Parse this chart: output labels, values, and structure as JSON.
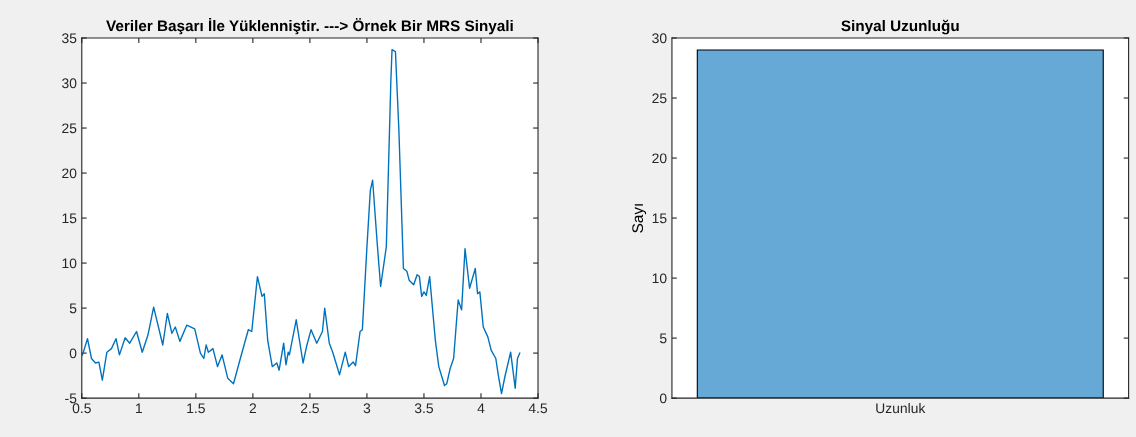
{
  "chart_data": [
    {
      "type": "line",
      "title": "Veriler Başarı İle Yüklenniştir. ---> Örnek Bir MRS Sinyali",
      "xlim": [
        0.5,
        4.5
      ],
      "xticks": [
        0.5,
        1,
        1.5,
        2,
        2.5,
        3,
        3.5,
        4,
        4.5
      ],
      "ylim": [
        -5,
        35
      ],
      "yticks": [
        -5,
        0,
        5,
        10,
        15,
        20,
        25,
        30,
        35
      ],
      "grid": false,
      "legend": false,
      "marker": "none",
      "line_style": "solid",
      "series": [
        {
          "color": "#0072bd",
          "x": [
            0.506,
            0.55,
            0.585,
            0.62,
            0.65,
            0.68,
            0.72,
            0.76,
            0.8,
            0.83,
            0.88,
            0.92,
            0.98,
            1.03,
            1.08,
            1.13,
            1.21,
            1.25,
            1.29,
            1.32,
            1.36,
            1.42,
            1.49,
            1.54,
            1.57,
            1.59,
            1.61,
            1.65,
            1.69,
            1.73,
            1.78,
            1.83,
            1.89,
            1.96,
            1.99,
            2.04,
            2.08,
            2.1,
            2.13,
            2.17,
            2.21,
            2.23,
            2.27,
            2.29,
            2.31,
            2.32,
            2.38,
            2.44,
            2.47,
            2.51,
            2.56,
            2.61,
            2.63,
            2.67,
            2.7,
            2.76,
            2.81,
            2.84,
            2.88,
            2.9,
            2.94,
            2.96,
            3.0,
            3.03,
            3.05,
            3.09,
            3.12,
            3.17,
            3.21,
            3.22,
            3.25,
            3.28,
            3.32,
            3.35,
            3.37,
            3.41,
            3.44,
            3.46,
            3.48,
            3.5,
            3.52,
            3.55,
            3.6,
            3.63,
            3.68,
            3.7,
            3.73,
            3.76,
            3.8,
            3.83,
            3.86,
            3.9,
            3.95,
            3.97,
            3.99,
            4.02,
            4.06,
            4.09,
            4.13,
            4.15,
            4.18,
            4.21,
            4.26,
            4.3,
            4.32,
            4.34
          ],
          "values": [
            -0.2,
            1.6,
            -0.6,
            -1.1,
            -1.0,
            -3.0,
            0.1,
            0.5,
            1.6,
            -0.2,
            1.7,
            1.1,
            2.4,
            0.1,
            2.0,
            5.1,
            0.9,
            4.4,
            2.2,
            2.9,
            1.3,
            3.1,
            2.7,
            0.0,
            -0.6,
            0.9,
            0.1,
            0.5,
            -1.5,
            -0.2,
            -2.8,
            -3.4,
            -0.6,
            2.6,
            2.4,
            8.5,
            6.3,
            6.6,
            1.4,
            -1.5,
            -1.1,
            -1.9,
            1.1,
            -1.3,
            0.1,
            -0.2,
            3.7,
            -1.1,
            0.7,
            2.6,
            1.1,
            2.4,
            5.0,
            1.1,
            0.1,
            -2.4,
            0.1,
            -1.5,
            -1.0,
            -1.4,
            2.4,
            2.6,
            11.8,
            18.1,
            19.2,
            12.2,
            7.4,
            11.8,
            30.3,
            33.7,
            33.5,
            24.8,
            9.4,
            9.1,
            8.1,
            7.6,
            8.7,
            8.5,
            6.3,
            6.8,
            6.4,
            8.5,
            1.4,
            -1.5,
            -3.6,
            -3.4,
            -1.7,
            -0.6,
            5.9,
            4.8,
            11.6,
            7.2,
            9.4,
            6.6,
            6.8,
            2.9,
            1.8,
            0.3,
            -0.6,
            -2.3,
            -4.5,
            -2.6,
            0.1,
            -3.9,
            -0.6,
            0.0
          ]
        }
      ]
    },
    {
      "type": "bar",
      "title": "Sinyal Uzunluğu",
      "ylabel": "Sayı",
      "categories": [
        "Uzunluk"
      ],
      "ylim": [
        0,
        30
      ],
      "yticks": [
        0,
        5,
        10,
        15,
        20,
        25,
        30
      ],
      "grid": false,
      "legend": false,
      "series": [
        {
          "color": "#66a9d7",
          "values": [
            29
          ]
        }
      ]
    }
  ]
}
